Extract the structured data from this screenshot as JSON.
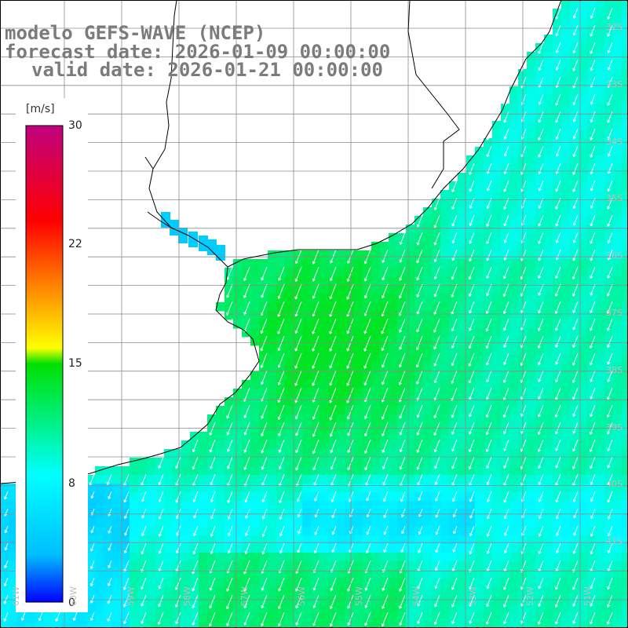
{
  "title": {
    "line1": "modelo GEFS-WAVE (NCEP)",
    "line2": "forecast date: 2026-01-09 00:00:00",
    "line3": "valid date: 2026-01-21 00:00:00"
  },
  "colorbar": {
    "unit": "[m/s]",
    "ticks": [
      "30",
      "22",
      "15",
      "8",
      "0"
    ],
    "min": 0,
    "max": 30,
    "colors": [
      "#0000ff",
      "#00bfff",
      "#00ffff",
      "#00e000",
      "#ffff00",
      "#ff8000",
      "#ff0000",
      "#c0007f"
    ]
  },
  "map": {
    "variable": "wind speed",
    "lat_labels": [
      "32S",
      "33S",
      "34S",
      "35S",
      "36S",
      "37S",
      "38S",
      "39S",
      "40S",
      "41S"
    ],
    "lon_labels": [
      "61W",
      "60W",
      "59W",
      "58W",
      "57W",
      "56W",
      "55W",
      "54W",
      "53W",
      "52W",
      "51W"
    ],
    "wind_direction": "from northeast",
    "land_color": "#ffffff",
    "grid_color": "#8c8c8c"
  }
}
